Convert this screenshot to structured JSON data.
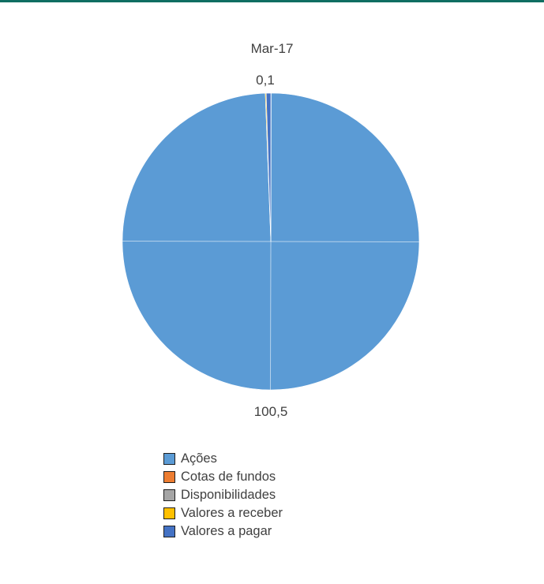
{
  "chart_data": {
    "type": "pie",
    "title": "Mar-17",
    "categories": [
      "Ações",
      "Cotas de fundos",
      "Disponibilidades",
      "Valores a receber",
      "Valores a pagar"
    ],
    "values": [
      100.5,
      0.0,
      0.0,
      0.1,
      0.5
    ],
    "data_labels": [
      {
        "category": "Valores a receber",
        "text": "0,1"
      },
      {
        "category": "Ações",
        "text": "100,5"
      }
    ],
    "colors": [
      "#5b9bd5",
      "#ed7d31",
      "#a5a5a5",
      "#ffc000",
      "#4472c4"
    ],
    "legend_position": "bottom"
  }
}
